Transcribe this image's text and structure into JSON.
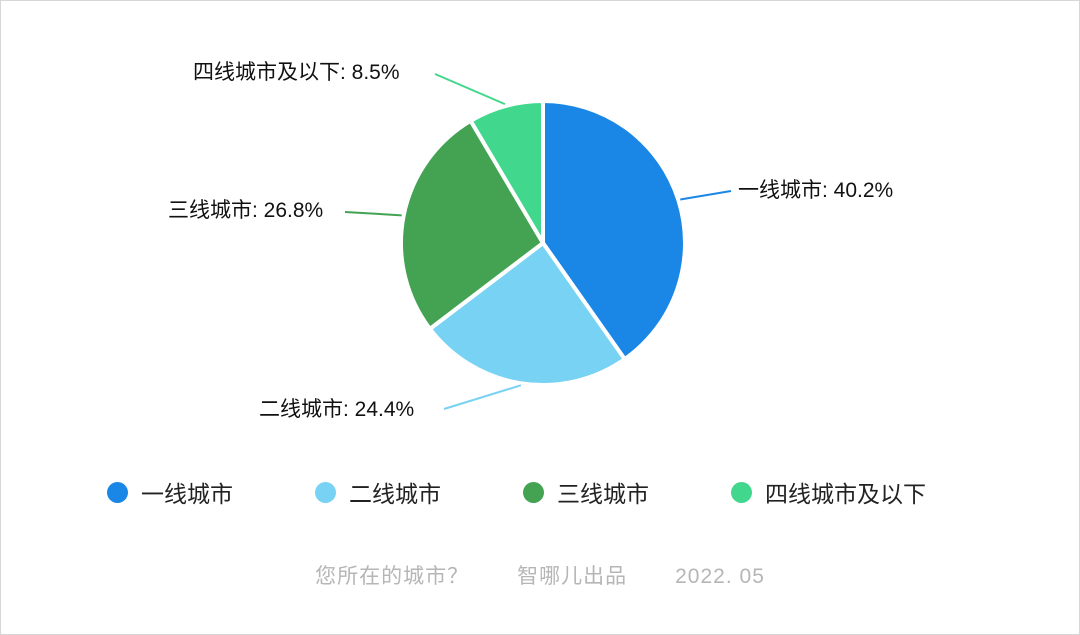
{
  "chart_data": {
    "type": "pie",
    "title": "您所在的城市？",
    "source": "智哪儿出品",
    "date": "2022. 05",
    "legend_position": "bottom",
    "direction": "clockwise",
    "start_angle": "top",
    "series": [
      {
        "name": "一线城市",
        "value": 40.2,
        "color": "#1a87e6"
      },
      {
        "name": "二线城市",
        "value": 24.4,
        "color": "#78d2f4"
      },
      {
        "name": "三线城市",
        "value": 26.8,
        "color": "#44a353"
      },
      {
        "name": "四线城市及以下",
        "value": 8.5,
        "color": "#41d78c"
      }
    ],
    "callouts": [
      "一线城市: 40.2%",
      "二线城市: 24.4%",
      "三线城市: 26.8%",
      "四线城市及以下: 8.5%"
    ]
  },
  "footer": {
    "question": "您所在的城市？",
    "source": "智哪儿出品",
    "date": "2022. 05"
  }
}
